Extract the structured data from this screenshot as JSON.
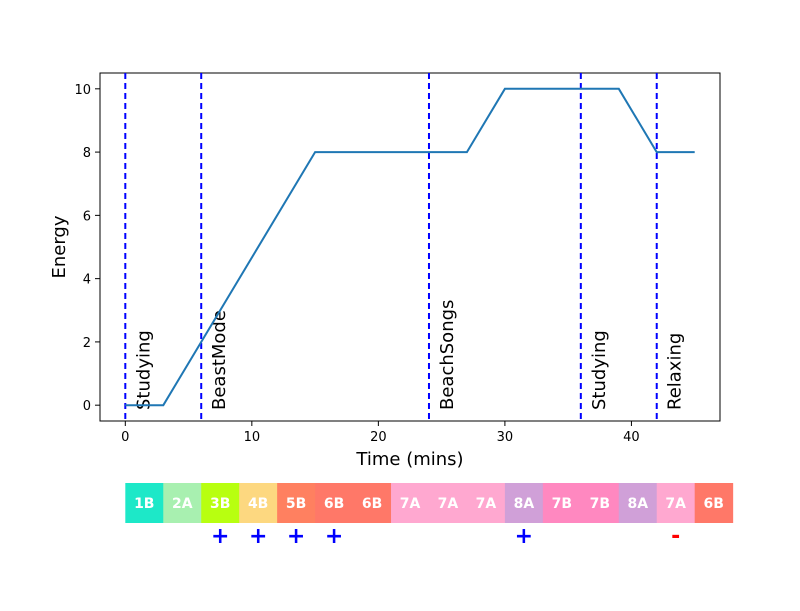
{
  "chart_data": {
    "type": "line",
    "xlabel": "Time (mins)",
    "ylabel": "Energy",
    "xlim": [
      -2,
      47
    ],
    "ylim": [
      -0.5,
      10.5
    ],
    "xticks": [
      0,
      10,
      20,
      30,
      40
    ],
    "yticks": [
      0,
      2,
      4,
      6,
      8,
      10
    ],
    "grid": false,
    "line_color": "#1f77b4",
    "marker_color": "#0000ff",
    "series": [
      {
        "x": [
          0,
          3,
          15,
          27,
          30,
          39,
          42,
          45
        ],
        "y": [
          0,
          0,
          8,
          8,
          10,
          10,
          8,
          8
        ]
      }
    ],
    "markers": [
      {
        "x": 0,
        "label": "Studying"
      },
      {
        "x": 6,
        "label": "BeastMode"
      },
      {
        "x": 24,
        "label": "BeachSongs"
      },
      {
        "x": 36,
        "label": "Studying"
      },
      {
        "x": 42,
        "label": "Relaxing"
      }
    ],
    "key_strip": [
      {
        "x": 0,
        "key": "1B",
        "color": "#1de8c8",
        "sign": ""
      },
      {
        "x": 3,
        "key": "2A",
        "color": "#a8f0b0",
        "sign": ""
      },
      {
        "x": 6,
        "key": "3B",
        "color": "#b8ff10",
        "sign": "+"
      },
      {
        "x": 9,
        "key": "4B",
        "color": "#fdd880",
        "sign": "+"
      },
      {
        "x": 12,
        "key": "5B",
        "color": "#ff8060",
        "sign": "+"
      },
      {
        "x": 15,
        "key": "6B",
        "color": "#ff7868",
        "sign": "+"
      },
      {
        "x": 18,
        "key": "6B",
        "color": "#ff7868",
        "sign": ""
      },
      {
        "x": 21,
        "key": "7A",
        "color": "#ffa8d0",
        "sign": ""
      },
      {
        "x": 24,
        "key": "7A",
        "color": "#ffa8d0",
        "sign": ""
      },
      {
        "x": 27,
        "key": "7A",
        "color": "#ffa8d0",
        "sign": ""
      },
      {
        "x": 30,
        "key": "8A",
        "color": "#d0a0d8",
        "sign": "+"
      },
      {
        "x": 33,
        "key": "7B",
        "color": "#ff88c0",
        "sign": ""
      },
      {
        "x": 36,
        "key": "7B",
        "color": "#ff88c0",
        "sign": ""
      },
      {
        "x": 39,
        "key": "8A",
        "color": "#d0a0d8",
        "sign": ""
      },
      {
        "x": 42,
        "key": "7A",
        "color": "#ffa8d0",
        "sign": "-"
      },
      {
        "x": 45,
        "key": "6B",
        "color": "#ff7868",
        "sign": ""
      }
    ],
    "sign_colors": {
      "+": "#0000ff",
      "-": "#ff0000"
    }
  }
}
